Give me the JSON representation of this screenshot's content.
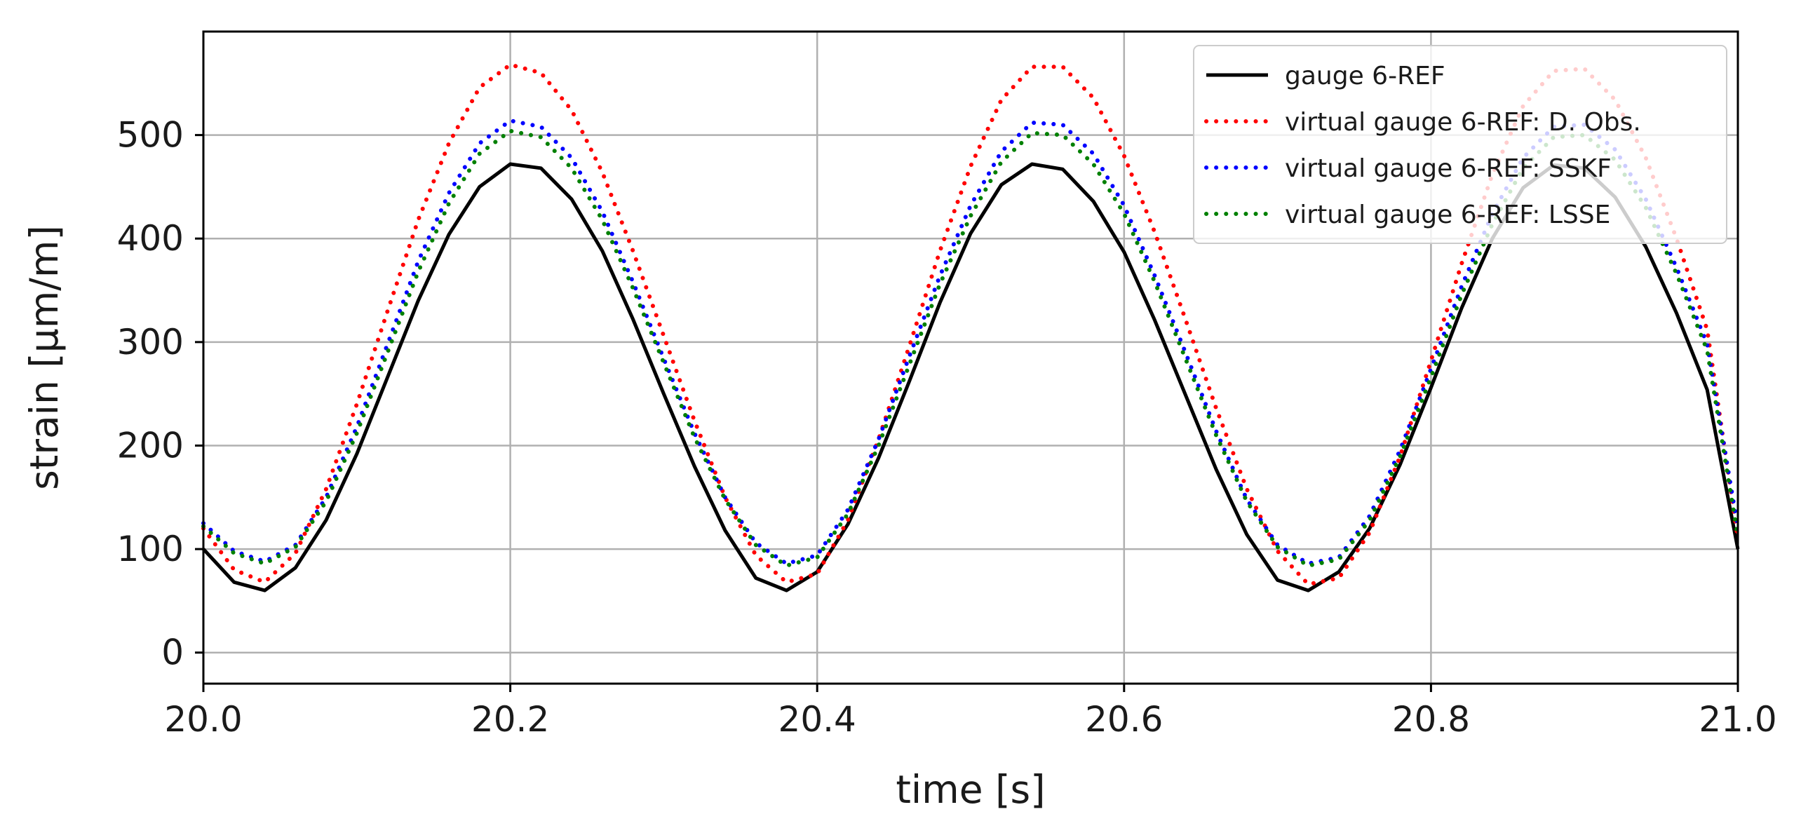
{
  "chart_data": {
    "type": "line",
    "title": "",
    "xlabel": "time [s]",
    "ylabel": "strain [µm/m]",
    "xlim": [
      20.0,
      21.0
    ],
    "ylim": [
      -30,
      600
    ],
    "xticks": [
      20.0,
      20.2,
      20.4,
      20.6,
      20.8,
      21.0
    ],
    "xtick_labels": [
      "20.0",
      "20.2",
      "20.4",
      "20.6",
      "20.8",
      "21.0"
    ],
    "yticks": [
      0,
      100,
      200,
      300,
      400,
      500
    ],
    "ytick_labels": [
      "0",
      "100",
      "200",
      "300",
      "400",
      "500"
    ],
    "grid": true,
    "legend_position": "top-right",
    "x": [
      20.0,
      20.02,
      20.04,
      20.06,
      20.08,
      20.1,
      20.12,
      20.14,
      20.16,
      20.18,
      20.2,
      20.22,
      20.24,
      20.26,
      20.28,
      20.3,
      20.32,
      20.34,
      20.36,
      20.38,
      20.4,
      20.42,
      20.44,
      20.46,
      20.48,
      20.5,
      20.52,
      20.54,
      20.56,
      20.58,
      20.6,
      20.62,
      20.64,
      20.66,
      20.68,
      20.7,
      20.72,
      20.74,
      20.76,
      20.78,
      20.8,
      20.82,
      20.84,
      20.86,
      20.88,
      20.9,
      20.92,
      20.94,
      20.96,
      20.98,
      21.0
    ],
    "series": [
      {
        "name": "gauge 6-REF",
        "color": "#000000",
        "style": "solid",
        "values": [
          100,
          68,
          60,
          82,
          128,
          192,
          266,
          340,
          404,
          450,
          472,
          468,
          438,
          388,
          322,
          250,
          180,
          118,
          72,
          60,
          78,
          124,
          188,
          262,
          338,
          405,
          452,
          472,
          467,
          436,
          387,
          321,
          249,
          177,
          114,
          70,
          60,
          78,
          120,
          182,
          256,
          333,
          400,
          449,
          471,
          468,
          440,
          392,
          328,
          254,
          100
        ]
      },
      {
        "name": "virtual gauge 6-REF: D. Obs.",
        "color": "#ff0000",
        "style": "dotted",
        "values": [
          120,
          80,
          68,
          96,
          158,
          240,
          330,
          418,
          492,
          546,
          568,
          560,
          524,
          464,
          388,
          306,
          224,
          150,
          94,
          68,
          76,
          128,
          206,
          296,
          388,
          470,
          534,
          566,
          566,
          536,
          480,
          406,
          322,
          236,
          158,
          98,
          66,
          72,
          116,
          190,
          282,
          376,
          462,
          528,
          562,
          564,
          534,
          478,
          400,
          312,
          110
        ]
      },
      {
        "name": "virtual gauge 6-REF: SSKF",
        "color": "#0000ff",
        "style": "dotted",
        "values": [
          125,
          98,
          88,
          104,
          150,
          218,
          298,
          378,
          444,
          492,
          514,
          508,
          478,
          426,
          358,
          284,
          212,
          150,
          106,
          86,
          94,
          138,
          206,
          286,
          364,
          432,
          484,
          512,
          510,
          482,
          432,
          364,
          290,
          214,
          148,
          104,
          86,
          92,
          132,
          196,
          274,
          354,
          424,
          478,
          508,
          510,
          486,
          438,
          372,
          298,
          120
        ]
      },
      {
        "name": "virtual gauge 6-REF: LSSE",
        "color": "#008000",
        "style": "dotted",
        "values": [
          122,
          96,
          86,
          102,
          146,
          212,
          290,
          368,
          434,
          482,
          504,
          498,
          468,
          418,
          352,
          280,
          208,
          148,
          104,
          84,
          92,
          134,
          200,
          278,
          356,
          422,
          474,
          502,
          500,
          472,
          424,
          358,
          284,
          210,
          146,
          102,
          84,
          90,
          128,
          190,
          266,
          346,
          414,
          468,
          498,
          500,
          476,
          430,
          366,
          292,
          112
        ]
      }
    ]
  }
}
